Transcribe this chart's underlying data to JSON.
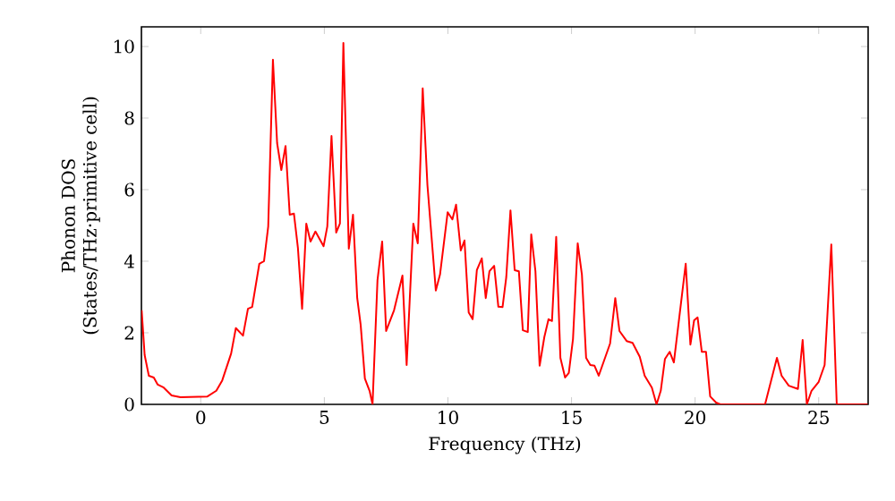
{
  "chart_data": {
    "type": "line",
    "xlabel": "Frequency (THz)",
    "ylabel": "Phonon DOS\n(States/THz·primitive cell)",
    "xlim": [
      -2.4,
      27
    ],
    "ylim": [
      0,
      10.55
    ],
    "xticks": [
      0,
      5,
      10,
      15,
      20,
      25
    ],
    "yticks": [
      0,
      2,
      4,
      6,
      8,
      10
    ],
    "marker": "none",
    "line_style": "solid",
    "series": [
      {
        "color": "#ff0000",
        "x": [
          -2.39,
          -2.27,
          -2.1,
          -1.9,
          -1.74,
          -1.5,
          -1.18,
          -0.82,
          0.27,
          0.63,
          0.87,
          1.11,
          1.23,
          1.42,
          1.71,
          1.91,
          2.08,
          2.37,
          2.56,
          2.73,
          2.92,
          3.09,
          3.26,
          3.43,
          3.6,
          3.77,
          3.93,
          4.1,
          4.27,
          4.44,
          4.64,
          4.97,
          5.12,
          5.29,
          5.48,
          5.63,
          5.77,
          5.99,
          6.16,
          6.33,
          6.47,
          6.64,
          6.83,
          6.95,
          7.15,
          7.34,
          7.5,
          7.82,
          8.16,
          8.33,
          8.6,
          8.78,
          8.98,
          9.17,
          9.51,
          9.68,
          9.99,
          10.18,
          10.33,
          10.52,
          10.67,
          10.84,
          11.0,
          11.17,
          11.37,
          11.53,
          11.68,
          11.87,
          12.04,
          12.21,
          12.36,
          12.53,
          12.7,
          12.87,
          13.03,
          13.23,
          13.37,
          13.54,
          13.71,
          13.9,
          14.07,
          14.21,
          14.38,
          14.55,
          14.74,
          14.89,
          15.06,
          15.25,
          15.42,
          15.59,
          15.76,
          15.93,
          16.1,
          16.56,
          16.77,
          16.94,
          17.23,
          17.47,
          17.76,
          17.96,
          18.25,
          18.44,
          18.61,
          18.78,
          18.97,
          19.14,
          19.62,
          19.81,
          19.96,
          20.1,
          20.27,
          20.44,
          20.61,
          20.85,
          21.02,
          22.83,
          23.31,
          23.5,
          23.79,
          24.16,
          24.35,
          24.52,
          24.71,
          25.0,
          25.24,
          25.51,
          25.73,
          26.98
        ],
        "values": [
          2.63,
          1.38,
          0.8,
          0.75,
          0.55,
          0.47,
          0.25,
          0.2,
          0.22,
          0.38,
          0.67,
          1.17,
          1.42,
          2.13,
          1.92,
          2.67,
          2.72,
          3.93,
          4.0,
          4.97,
          9.63,
          7.3,
          6.55,
          7.22,
          5.3,
          5.33,
          4.38,
          2.67,
          5.05,
          4.55,
          4.83,
          4.42,
          4.97,
          7.5,
          4.8,
          5.05,
          10.1,
          4.35,
          5.3,
          2.97,
          2.22,
          0.72,
          0.38,
          0,
          3.47,
          4.55,
          2.05,
          2.63,
          3.6,
          1.1,
          5.05,
          4.5,
          8.83,
          6.13,
          3.18,
          3.63,
          5.37,
          5.17,
          5.58,
          4.3,
          4.58,
          2.57,
          2.38,
          3.75,
          4.08,
          2.97,
          3.72,
          3.87,
          2.73,
          2.72,
          3.55,
          5.42,
          3.75,
          3.72,
          2.07,
          2.02,
          4.75,
          3.72,
          1.08,
          1.88,
          2.38,
          2.33,
          4.68,
          1.3,
          0.75,
          0.88,
          1.83,
          4.5,
          3.63,
          1.3,
          1.1,
          1.08,
          0.8,
          1.7,
          2.97,
          2.05,
          1.77,
          1.72,
          1.33,
          0.8,
          0.47,
          0,
          0.38,
          1.27,
          1.47,
          1.17,
          3.93,
          1.67,
          2.35,
          2.43,
          1.47,
          1.47,
          0.22,
          0.05,
          0,
          0,
          1.3,
          0.8,
          0.52,
          0.43,
          1.8,
          0,
          0.38,
          0.63,
          1.1,
          4.47,
          0,
          0
        ]
      }
    ]
  }
}
